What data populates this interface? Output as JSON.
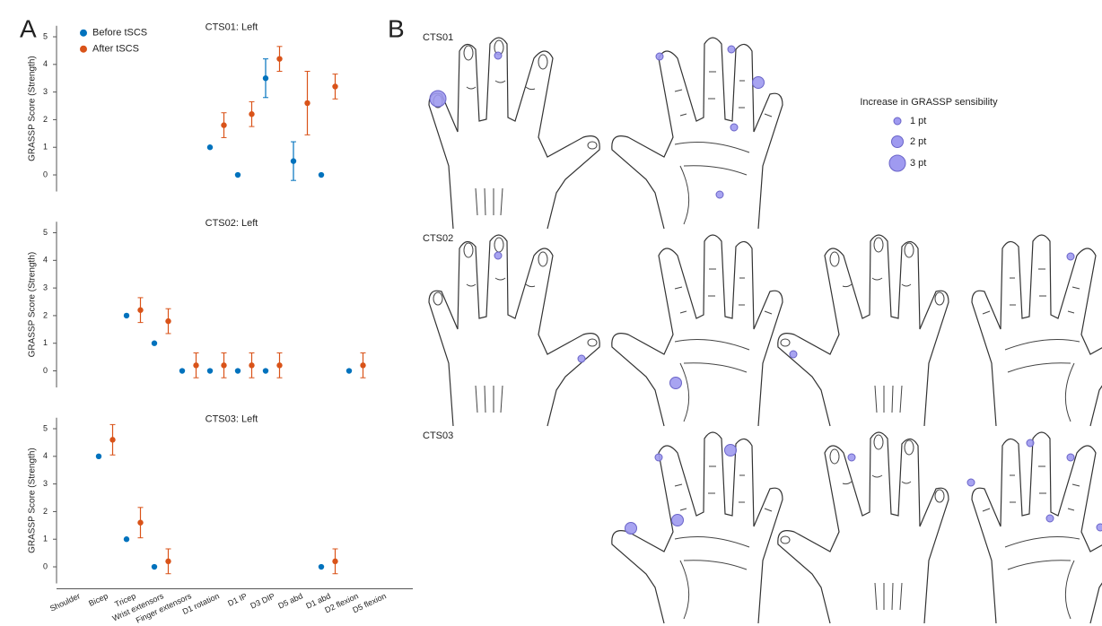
{
  "panel_labels": [
    "A",
    "B"
  ],
  "chart_data": [
    {
      "type": "errorbar",
      "title": "CTS01: Left",
      "y_label": "GRASSP Score (Strength)",
      "ylim": [
        -0.6,
        5.4
      ],
      "yticks": [
        0,
        1,
        2,
        3,
        4,
        5
      ],
      "legend": "upper left",
      "series": [
        {
          "name": "Before tSCS",
          "color": "#0072bd",
          "values": [
            null,
            null,
            null,
            null,
            null,
            1,
            0,
            3.5,
            0.5,
            0,
            null,
            null
          ],
          "errors": [
            null,
            null,
            null,
            null,
            null,
            null,
            null,
            0.7,
            0.7,
            null,
            null,
            null
          ]
        },
        {
          "name": "After tSCS",
          "color": "#d95319",
          "values": [
            null,
            null,
            null,
            null,
            null,
            1.8,
            2.2,
            4.2,
            2.6,
            3.2,
            null,
            null
          ],
          "errors": [
            null,
            null,
            null,
            null,
            null,
            0.45,
            0.45,
            0.45,
            1.15,
            0.45,
            null,
            null
          ]
        }
      ]
    },
    {
      "type": "errorbar",
      "title": "CTS02: Left",
      "y_label": "GRASSP Score (Strength)",
      "ylim": [
        -0.6,
        5.4
      ],
      "yticks": [
        0,
        1,
        2,
        3,
        4,
        5
      ],
      "series": [
        {
          "color": "#0072bd",
          "values": [
            null,
            null,
            2,
            1,
            0,
            0,
            0,
            0,
            null,
            null,
            0,
            null
          ],
          "errors": [
            null,
            null,
            null,
            null,
            null,
            null,
            null,
            null,
            null,
            null,
            null,
            null
          ]
        },
        {
          "color": "#d95319",
          "values": [
            null,
            null,
            2.2,
            1.8,
            0.2,
            0.2,
            0.2,
            0.2,
            null,
            null,
            0.2,
            null
          ],
          "errors": [
            null,
            null,
            0.45,
            0.45,
            0.45,
            0.45,
            0.45,
            0.45,
            null,
            null,
            0.45,
            null
          ]
        }
      ]
    },
    {
      "type": "errorbar",
      "title": "CTS03: Left",
      "y_label": "GRASSP Score (Strength)",
      "ylim": [
        -0.6,
        5.4
      ],
      "yticks": [
        0,
        1,
        2,
        3,
        4,
        5
      ],
      "categories": [
        "Shoulder",
        "Bicep",
        "Tricep",
        "Wrist extensors",
        "Finger extensors",
        "D1 rotation",
        "D1 IP",
        "D3 DIP",
        "D5 abd",
        "D1 abd",
        "D2 flexion",
        "D5 flexion"
      ],
      "series": [
        {
          "color": "#0072bd",
          "values": [
            null,
            4,
            1,
            0,
            null,
            null,
            null,
            null,
            null,
            0,
            null,
            null
          ],
          "errors": [
            null,
            null,
            null,
            null,
            null,
            null,
            null,
            null,
            null,
            null,
            null,
            null
          ]
        },
        {
          "color": "#d95319",
          "values": [
            null,
            4.6,
            1.6,
            0.2,
            null,
            null,
            null,
            null,
            null,
            0.2,
            null,
            null
          ],
          "errors": [
            null,
            0.55,
            0.55,
            0.45,
            null,
            null,
            null,
            null,
            null,
            0.45,
            null,
            null
          ]
        }
      ]
    }
  ],
  "sensibility_map": {
    "title": "Increase in GRASSP sensibility",
    "color": "#9f9af0",
    "legend": [
      {
        "value": 1,
        "label": "1 pt"
      },
      {
        "value": 2,
        "label": "2 pt"
      },
      {
        "value": 3,
        "label": "3 pt"
      }
    ],
    "subjects": [
      {
        "label": "CTS01",
        "values": [
          3,
          1,
          1,
          1,
          2,
          1,
          1
        ]
      },
      {
        "label": "CTS02",
        "values": [
          1,
          1,
          2,
          1,
          1
        ]
      },
      {
        "label": "CTS03",
        "values": [
          1,
          2,
          2,
          2,
          1,
          1,
          1,
          1,
          1,
          1
        ]
      }
    ]
  }
}
